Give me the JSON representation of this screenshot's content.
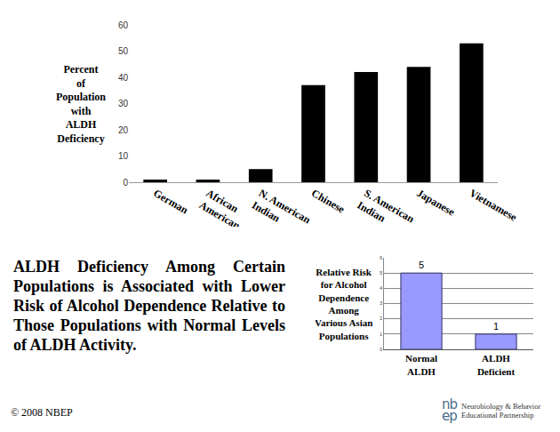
{
  "chart_data": [
    {
      "type": "bar",
      "y_label": "Percent\nof\nPopulation\nwith\nALDH\nDeficiency",
      "categories": [
        "German",
        "African American",
        "N. American Indian",
        "Chinese",
        "S. American Indian",
        "Japanese",
        "Vietnamese"
      ],
      "values": [
        1,
        1,
        5,
        37,
        42,
        44,
        53
      ],
      "color": "#000000",
      "ylim": [
        0,
        60
      ],
      "yticks": [
        0,
        10,
        20,
        30,
        40,
        50,
        60
      ],
      "grid": false
    },
    {
      "type": "bar",
      "y_label": "Relative Risk\nfor Alcohol\nDependence\nAmong\nVarious Asian\nPopulations",
      "categories": [
        "Normal ALDH",
        "ALDH Deficient"
      ],
      "values": [
        5,
        1
      ],
      "color": "#9999ff",
      "ylim": [
        0,
        6
      ],
      "yticks": [
        0,
        1,
        2,
        3,
        4,
        5,
        6
      ],
      "grid": true,
      "data_labels": true
    }
  ],
  "caption": "ALDH Deficiency Among Certain Populations is Associated with  Lower Risk of Alcohol Dependence Relative to Those Populations with Normal Levels of ALDH Activity.",
  "copyright": "© 2008 NBEP",
  "logo": {
    "mark": "nb\nep",
    "name": "Neurobiology & Behavior\nEducational Partnership"
  }
}
